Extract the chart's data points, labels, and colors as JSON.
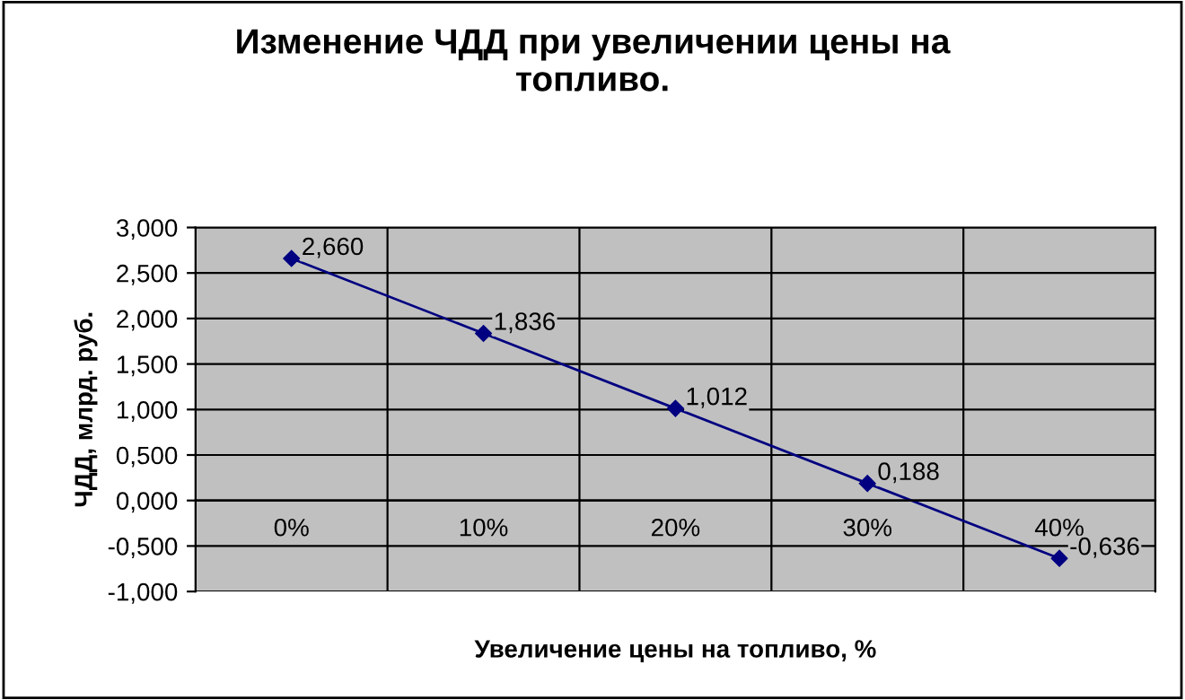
{
  "chart_data": {
    "type": "line",
    "title": "Изменение ЧДД при увеличении цены на\nтопливо.",
    "xlabel": "Увеличение цены на топливо, %",
    "ylabel": "ЧДД, млрд. руб.",
    "categories": [
      "0%",
      "10%",
      "20%",
      "30%",
      "40%"
    ],
    "series": [
      {
        "color": "#000080",
        "values": [
          2.66,
          1.836,
          1.012,
          0.188,
          -0.636
        ],
        "value_labels": [
          "2,660",
          "1,836",
          "1,012",
          "0,188",
          "-0,636"
        ]
      }
    ],
    "ylim": [
      -1,
      3
    ],
    "yticks": [
      {
        "value": -1,
        "label": "-1,000"
      },
      {
        "value": -0.5,
        "label": "-0,500"
      },
      {
        "value": 0,
        "label": "0,000"
      },
      {
        "value": 0.5,
        "label": "0,500"
      },
      {
        "value": 1,
        "label": "1,000"
      },
      {
        "value": 1.5,
        "label": "1,500"
      },
      {
        "value": 2,
        "label": "2,000"
      },
      {
        "value": 2.5,
        "label": "2,500"
      },
      {
        "value": 3,
        "label": "3,000"
      }
    ],
    "grid": true,
    "marker": "diamond",
    "line_style": "solid",
    "legend": false
  }
}
